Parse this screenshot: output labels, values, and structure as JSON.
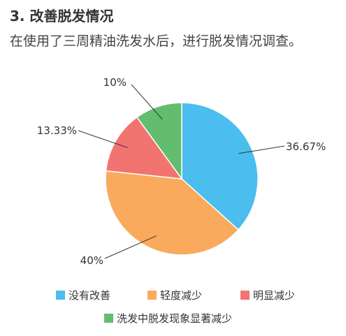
{
  "header": {
    "title": "3. 改善脱发情况",
    "subtitle": "在使用了三周精油洗发水后，进行脱发情况调查。"
  },
  "chart_data": {
    "type": "pie",
    "title": "",
    "categories": [
      "没有改善",
      "轻度减少",
      "明显减少",
      "洗发中脱发现象显著减少"
    ],
    "values": [
      36.67,
      40,
      13.33,
      10
    ],
    "labels": [
      "36.67%",
      "40%",
      "13.33%",
      "10%"
    ],
    "colors": [
      "#4bbdee",
      "#f9aa5c",
      "#f17470",
      "#62be6e"
    ],
    "start_angle": "12 o'clock, clockwise",
    "legend_placement": "bottom"
  }
}
